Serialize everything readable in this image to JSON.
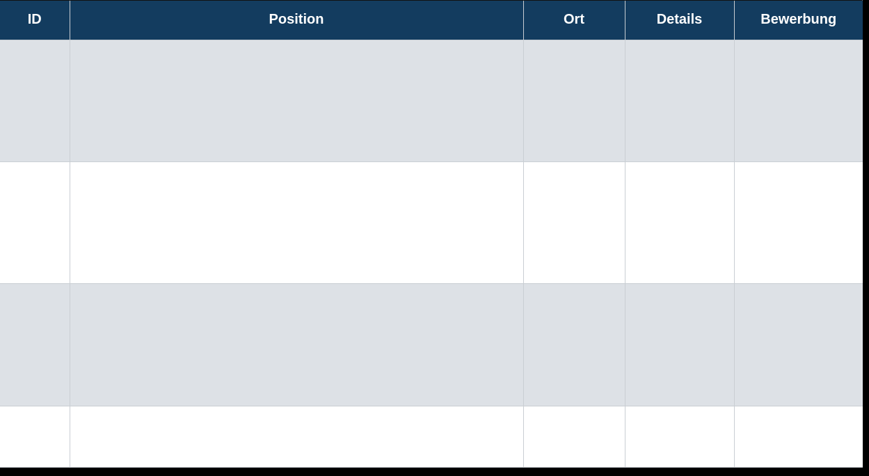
{
  "table": {
    "headers": [
      "ID",
      "Position",
      "Ort",
      "Details",
      "Bewerbung"
    ],
    "rows": [
      [
        "",
        "",
        "",
        "",
        ""
      ],
      [
        "",
        "",
        "",
        "",
        ""
      ],
      [
        "",
        "",
        "",
        "",
        ""
      ],
      [
        "",
        "",
        "",
        "",
        ""
      ]
    ]
  },
  "colors": {
    "header_bg": "#133C5F",
    "header_text": "#FFFFFF",
    "row_alt_bg": "#DDE1E6",
    "row_bg": "#FFFFFF",
    "grid_line": "#C9CED3",
    "page_bg": "#000000"
  }
}
